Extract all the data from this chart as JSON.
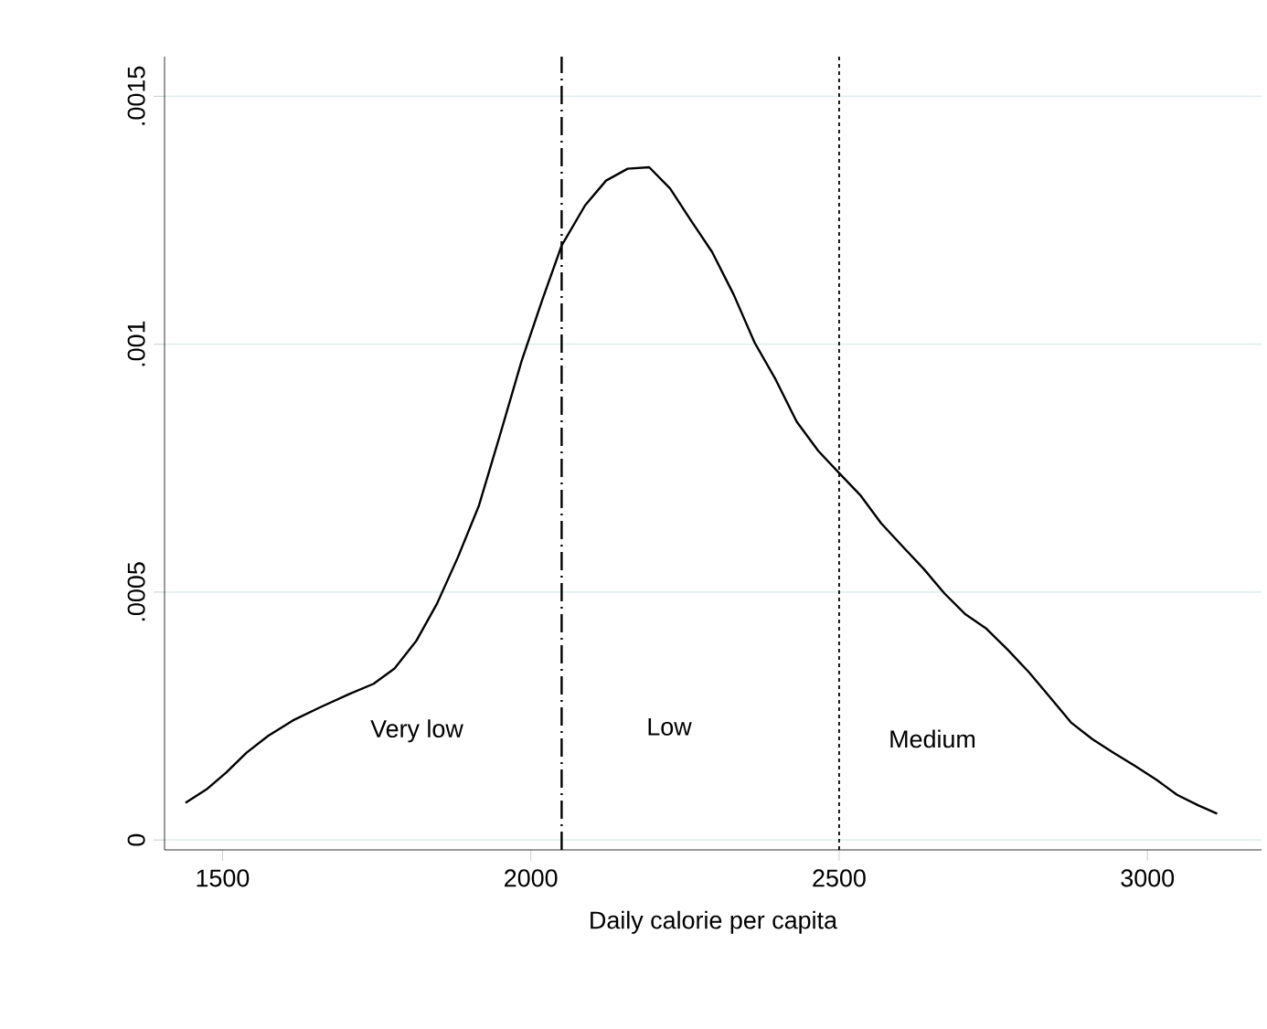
{
  "chart_data": {
    "type": "line",
    "xlabel": "Daily calorie per capita",
    "xlim": [
      1406,
      3185
    ],
    "ylim": [
      -2e-05,
      0.00158
    ],
    "xticks": [
      1500,
      2000,
      2500,
      3000
    ],
    "yticks": [
      0,
      {
        "value": 0.0005,
        "label": ".0005"
      },
      {
        "value": 0.001,
        "label": ".001"
      },
      {
        "value": 0.0015,
        "label": ".0015"
      }
    ],
    "grid": "y",
    "marker": "none",
    "line_style": "solid",
    "series": [
      {
        "color": "#000000",
        "x": [
          1440,
          1474,
          1506,
          1539,
          1574,
          1614,
          1659,
          1705,
          1745,
          1779,
          1814,
          1848,
          1882,
          1916,
          1951,
          1985,
          2019,
          2050,
          2088,
          2122,
          2157,
          2192,
          2226,
          2260,
          2294,
          2329,
          2363,
          2397,
          2431,
          2466,
          2500,
          2534,
          2568,
          2603,
          2637,
          2671,
          2705,
          2739,
          2774,
          2808,
          2842,
          2876,
          2911,
          2945,
          2979,
          3014,
          3048,
          3082,
          3113
        ],
        "values": [
          7.5e-05,
          0.000102,
          0.000136,
          0.000176,
          0.00021,
          0.000241,
          0.000268,
          0.000294,
          0.000315,
          0.000346,
          0.000401,
          0.000477,
          0.000571,
          0.000675,
          0.000821,
          0.000966,
          0.001091,
          0.001199,
          0.00128,
          0.00133,
          0.001354,
          0.001357,
          0.001314,
          0.001249,
          0.001186,
          0.0011,
          0.001003,
          0.000929,
          0.000844,
          0.000785,
          0.00074,
          0.000696,
          0.000639,
          0.000592,
          0.000547,
          0.000497,
          0.000455,
          0.000426,
          0.000383,
          0.000338,
          0.000288,
          0.000237,
          0.000203,
          0.000176,
          0.00015,
          0.000122,
          9.1e-05,
          7e-05,
          5.3e-05
        ]
      }
    ],
    "ref_lines": [
      {
        "axis": "x",
        "value": 2050,
        "line_style": "dashed",
        "color": "#000000"
      },
      {
        "axis": "x",
        "value": 2500,
        "line_style": "dotted",
        "color": "#000000"
      }
    ],
    "annotations": [
      "Very low",
      "Low",
      "Medium"
    ]
  }
}
